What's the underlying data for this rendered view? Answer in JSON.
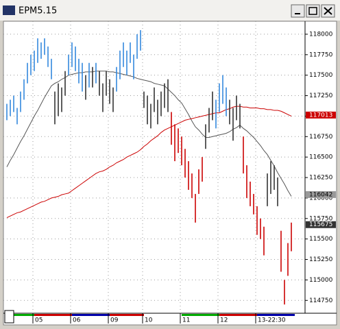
{
  "window": {
    "title": "EPM5.15"
  },
  "chart_data": {
    "type": "range-bar",
    "categories": [
      null,
      null,
      null,
      null,
      null,
      null,
      null,
      null,
      "05",
      null,
      null,
      null,
      null,
      null,
      null,
      null,
      null,
      null,
      null,
      "06",
      null,
      null,
      null,
      null,
      null,
      null,
      null,
      null,
      null,
      null,
      "09",
      null,
      null,
      null,
      null,
      null,
      null,
      null,
      null,
      null,
      "10",
      null,
      null,
      null,
      null,
      null,
      null,
      null,
      null,
      null,
      null,
      "11",
      null,
      null,
      null,
      null,
      null,
      null,
      null,
      null,
      null,
      null,
      "12",
      null,
      null,
      null,
      null,
      null,
      null,
      null,
      null,
      null,
      null,
      "13-22:30",
      null,
      null,
      null,
      null,
      null,
      null,
      null,
      null,
      null,
      null
    ],
    "highs": [
      117150,
      117200,
      117250,
      117100,
      117300,
      117450,
      117650,
      117750,
      117800,
      117950,
      117900,
      117950,
      117850,
      117700,
      117300,
      117400,
      117350,
      117550,
      117750,
      117900,
      117850,
      117700,
      117650,
      117500,
      117650,
      117600,
      117650,
      117550,
      117400,
      117550,
      117450,
      117350,
      117600,
      117800,
      117900,
      117800,
      117900,
      117750,
      118000,
      118050,
      117300,
      117250,
      117150,
      117350,
      117200,
      117300,
      117400,
      117450,
      117050,
      116900,
      116850,
      116750,
      116600,
      116450,
      116300,
      116050,
      116350,
      116500,
      116900,
      117100,
      117300,
      117200,
      117400,
      117500,
      117350,
      117200,
      117100,
      117250,
      117150,
      116750,
      116400,
      116200,
      116050,
      115900,
      115750,
      115650,
      116300,
      116450,
      116400,
      116250,
      115600,
      115000,
      115450,
      115700
    ],
    "lows": [
      116950,
      117000,
      117050,
      116900,
      117050,
      117200,
      117400,
      117500,
      117550,
      117650,
      117700,
      117750,
      117600,
      117450,
      116900,
      117000,
      117050,
      117250,
      117500,
      117600,
      117550,
      117400,
      117300,
      117200,
      117350,
      117350,
      117400,
      117250,
      117050,
      117250,
      117150,
      117050,
      117300,
      117450,
      117600,
      117500,
      117650,
      117450,
      117700,
      117800,
      117100,
      116900,
      116850,
      117050,
      116900,
      117000,
      117100,
      117050,
      116650,
      116450,
      116550,
      116400,
      116250,
      116100,
      116000,
      115700,
      116050,
      116200,
      116600,
      116800,
      116950,
      116850,
      117050,
      117150,
      117000,
      116900,
      116700,
      116950,
      116850,
      116300,
      116000,
      115900,
      115800,
      115550,
      115500,
      115300,
      115900,
      116050,
      116100,
      115900,
      115100,
      114700,
      115050,
      115350
    ],
    "bar_colors": [
      "#3388dd",
      "#3388dd",
      "#3388dd",
      "#3388dd",
      "#3388dd",
      "#3388dd",
      "#3388dd",
      "#3388dd",
      "#3388dd",
      "#3388dd",
      "#3388dd",
      "#3388dd",
      "#3388dd",
      "#3388dd",
      "#333333",
      "#333333",
      "#333333",
      "#333333",
      "#3388dd",
      "#3388dd",
      "#3388dd",
      "#3388dd",
      "#3388dd",
      "#333333",
      "#3388dd",
      "#333333",
      "#3388dd",
      "#333333",
      "#333333",
      "#333333",
      "#333333",
      "#333333",
      "#3388dd",
      "#3388dd",
      "#3388dd",
      "#3388dd",
      "#3388dd",
      "#3388dd",
      "#3388dd",
      "#3388dd",
      "#333333",
      "#333333",
      "#333333",
      "#333333",
      "#333333",
      "#333333",
      "#333333",
      "#333333",
      "#cc0000",
      "#cc0000",
      "#cc0000",
      "#cc0000",
      "#cc0000",
      "#cc0000",
      "#cc0000",
      "#cc0000",
      "#cc0000",
      "#cc0000",
      "#333333",
      "#333333",
      "#333333",
      "#3388dd",
      "#3388dd",
      "#3388dd",
      "#3388dd",
      "#333333",
      "#333333",
      "#333333",
      "#333333",
      "#cc0000",
      "#cc0000",
      "#cc0000",
      "#cc0000",
      "#cc0000",
      "#cc0000",
      "#cc0000",
      "#333333",
      "#333333",
      "#333333",
      "#333333",
      "#cc0000",
      "#cc0000",
      "#cc0000",
      "#cc0000"
    ],
    "lines": [
      {
        "color": "#555555",
        "values": [
          116380,
          116460,
          116530,
          116610,
          116690,
          116760,
          116840,
          116920,
          117000,
          117070,
          117150,
          117230,
          117300,
          117370,
          117400,
          117420,
          117450,
          117470,
          117500,
          117510,
          117520,
          117530,
          117530,
          117540,
          117540,
          117540,
          117550,
          117550,
          117550,
          117550,
          117540,
          117540,
          117530,
          117520,
          117510,
          117500,
          117490,
          117480,
          117460,
          117450,
          117440,
          117430,
          117420,
          117400,
          117390,
          117380,
          117370,
          117330,
          117290,
          117250,
          117200,
          117160,
          117090,
          117020,
          116940,
          116870,
          116830,
          116780,
          116740,
          116740,
          116750,
          116760,
          116770,
          116780,
          116790,
          116810,
          116840,
          116860,
          116890,
          116850,
          116820,
          116780,
          116740,
          116690,
          116640,
          116580,
          116530,
          116460,
          116390,
          116310,
          116240,
          116170,
          116090,
          116020
        ]
      },
      {
        "color": "#cc0000",
        "values": [
          115760,
          115780,
          115800,
          115820,
          115830,
          115850,
          115870,
          115890,
          115910,
          115930,
          115950,
          115960,
          115980,
          116000,
          116010,
          116020,
          116040,
          116050,
          116060,
          116090,
          116120,
          116150,
          116180,
          116210,
          116240,
          116270,
          116300,
          116320,
          116330,
          116350,
          116380,
          116400,
          116430,
          116450,
          116470,
          116500,
          116520,
          116540,
          116560,
          116590,
          116630,
          116660,
          116700,
          116730,
          116760,
          116800,
          116830,
          116850,
          116870,
          116890,
          116910,
          116930,
          116950,
          116960,
          116970,
          116980,
          116990,
          117000,
          117010,
          117020,
          117030,
          117040,
          117040,
          117060,
          117080,
          117090,
          117110,
          117120,
          117120,
          117110,
          117110,
          117100,
          117100,
          117100,
          117090,
          117090,
          117080,
          117080,
          117070,
          117070,
          117060,
          117040,
          117020,
          117000
        ]
      }
    ],
    "price_markers": [
      {
        "value": 117013,
        "color": "#cc0000",
        "text_color": "#ffffff"
      },
      {
        "value": 116042,
        "color": "#999999",
        "text_color": "#000000"
      },
      {
        "value": 115675,
        "color": "#333333",
        "text_color": "#ffffff"
      }
    ],
    "ylim": [
      114610,
      118150
    ],
    "yticks": [
      114750,
      115000,
      115250,
      115500,
      115750,
      116000,
      116250,
      116500,
      116750,
      117000,
      117250,
      117500,
      117750,
      118000
    ],
    "grid": true
  }
}
